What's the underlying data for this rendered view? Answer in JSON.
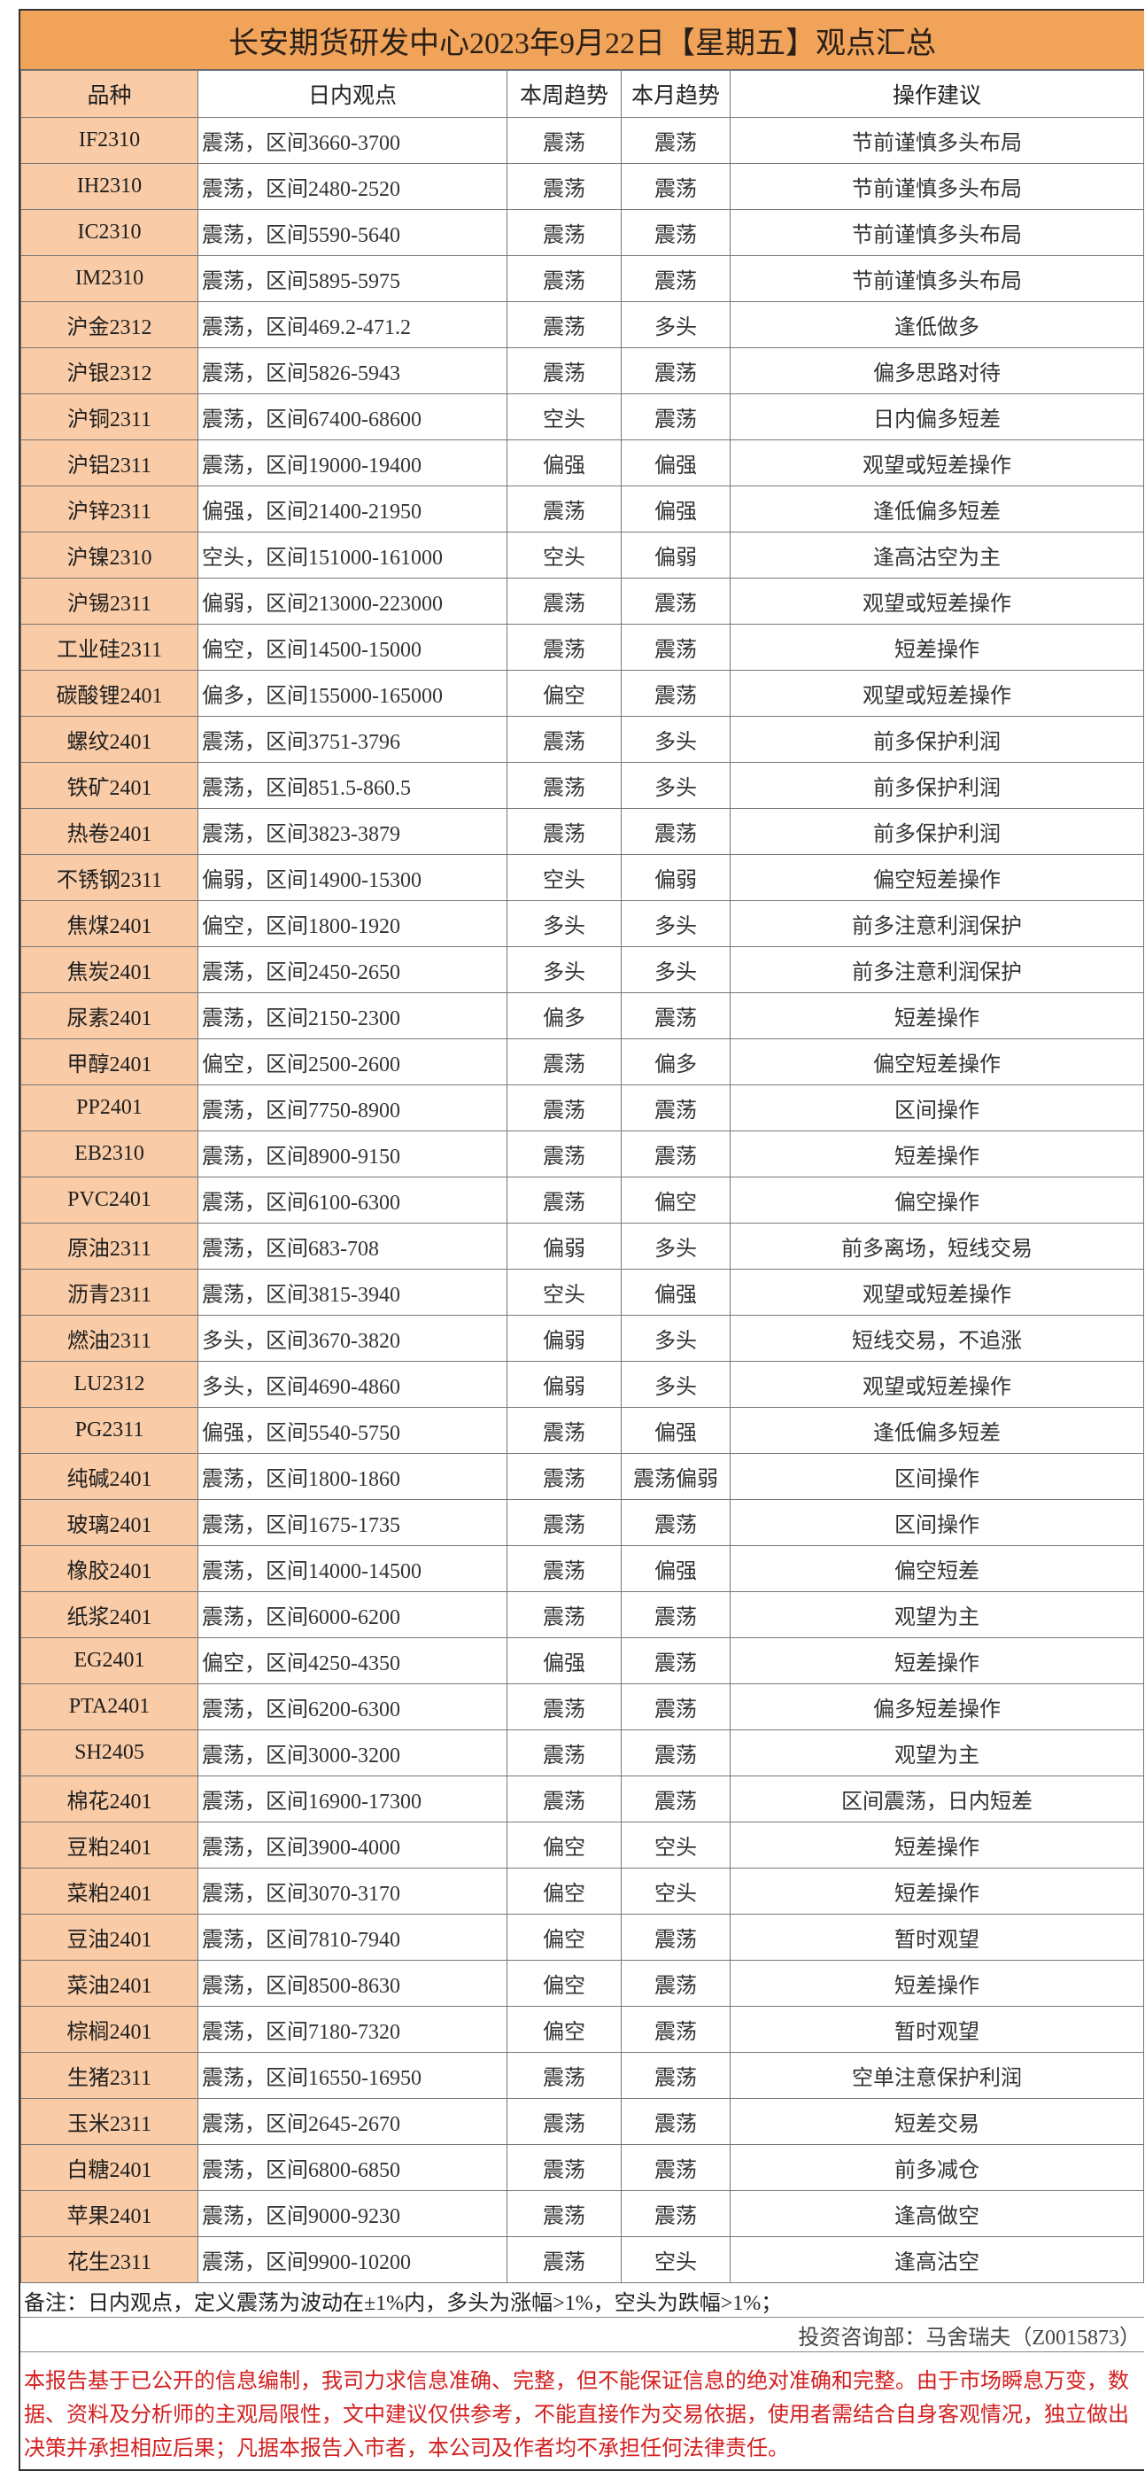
{
  "title": "长安期货研发中心2023年9月22日【星期五】观点汇总",
  "colors": {
    "title_bg": "#F1A35A",
    "variety_col_bg": "#F9CBA6",
    "disclaimer_text": "#D42020"
  },
  "headers": [
    "品种",
    "日内观点",
    "本周趋势",
    "本月趋势",
    "操作建议"
  ],
  "rows": [
    [
      "IF2310",
      "震荡，区间3660-3700",
      "震荡",
      "震荡",
      "节前谨慎多头布局"
    ],
    [
      "IH2310",
      "震荡，区间2480-2520",
      "震荡",
      "震荡",
      "节前谨慎多头布局"
    ],
    [
      "IC2310",
      "震荡，区间5590-5640",
      "震荡",
      "震荡",
      "节前谨慎多头布局"
    ],
    [
      "IM2310",
      "震荡，区间5895-5975",
      "震荡",
      "震荡",
      "节前谨慎多头布局"
    ],
    [
      "沪金2312",
      "震荡，区间469.2-471.2",
      "震荡",
      "多头",
      "逢低做多"
    ],
    [
      "沪银2312",
      "震荡，区间5826-5943",
      "震荡",
      "震荡",
      "偏多思路对待"
    ],
    [
      "沪铜2311",
      "震荡，区间67400-68600",
      "空头",
      "震荡",
      "日内偏多短差"
    ],
    [
      "沪铝2311",
      "震荡，区间19000-19400",
      "偏强",
      "偏强",
      "观望或短差操作"
    ],
    [
      "沪锌2311",
      "偏强，区间21400-21950",
      "震荡",
      "偏强",
      "逢低偏多短差"
    ],
    [
      "沪镍2310",
      "空头，区间151000-161000",
      "空头",
      "偏弱",
      "逢高沽空为主"
    ],
    [
      "沪锡2311",
      "偏弱，区间213000-223000",
      "震荡",
      "震荡",
      "观望或短差操作"
    ],
    [
      "工业硅2311",
      "偏空，区间14500-15000",
      "震荡",
      "震荡",
      "短差操作"
    ],
    [
      "碳酸锂2401",
      "偏多，区间155000-165000",
      "偏空",
      "震荡",
      "观望或短差操作"
    ],
    [
      "螺纹2401",
      "震荡，区间3751-3796",
      "震荡",
      "多头",
      "前多保护利润"
    ],
    [
      "铁矿2401",
      "震荡，区间851.5-860.5",
      "震荡",
      "多头",
      "前多保护利润"
    ],
    [
      "热卷2401",
      "震荡，区间3823-3879",
      "震荡",
      "震荡",
      "前多保护利润"
    ],
    [
      "不锈钢2311",
      "偏弱，区间14900-15300",
      "空头",
      "偏弱",
      "偏空短差操作"
    ],
    [
      "焦煤2401",
      "偏空，区间1800-1920",
      "多头",
      "多头",
      "前多注意利润保护"
    ],
    [
      "焦炭2401",
      "震荡，区间2450-2650",
      "多头",
      "多头",
      "前多注意利润保护"
    ],
    [
      "尿素2401",
      "震荡，区间2150-2300",
      "偏多",
      "震荡",
      "短差操作"
    ],
    [
      "甲醇2401",
      "偏空，区间2500-2600",
      "震荡",
      "偏多",
      "偏空短差操作"
    ],
    [
      "PP2401",
      "震荡，区间7750-8900",
      "震荡",
      "震荡",
      "区间操作"
    ],
    [
      "EB2310",
      "震荡，区间8900-9150",
      "震荡",
      "震荡",
      "短差操作"
    ],
    [
      "PVC2401",
      "震荡，区间6100-6300",
      "震荡",
      "偏空",
      "偏空操作"
    ],
    [
      "原油2311",
      "震荡，区间683-708",
      "偏弱",
      "多头",
      "前多离场，短线交易"
    ],
    [
      "沥青2311",
      "震荡，区间3815-3940",
      "空头",
      "偏强",
      "观望或短差操作"
    ],
    [
      "燃油2311",
      "多头，区间3670-3820",
      "偏弱",
      "多头",
      "短线交易，不追涨"
    ],
    [
      "LU2312",
      "多头，区间4690-4860",
      "偏弱",
      "多头",
      "观望或短差操作"
    ],
    [
      "PG2311",
      "偏强，区间5540-5750",
      "震荡",
      "偏强",
      "逢低偏多短差"
    ],
    [
      "纯碱2401",
      "震荡，区间1800-1860",
      "震荡",
      "震荡偏弱",
      "区间操作"
    ],
    [
      "玻璃2401",
      "震荡，区间1675-1735",
      "震荡",
      "震荡",
      "区间操作"
    ],
    [
      "橡胶2401",
      "震荡，区间14000-14500",
      "震荡",
      "偏强",
      "偏空短差"
    ],
    [
      "纸浆2401",
      "震荡，区间6000-6200",
      "震荡",
      "震荡",
      "观望为主"
    ],
    [
      "EG2401",
      "偏空，区间4250-4350",
      "偏强",
      "震荡",
      "短差操作"
    ],
    [
      "PTA2401",
      "震荡，区间6200-6300",
      "震荡",
      "震荡",
      "偏多短差操作"
    ],
    [
      "SH2405",
      "震荡，区间3000-3200",
      "震荡",
      "震荡",
      "观望为主"
    ],
    [
      "棉花2401",
      "震荡，区间16900-17300",
      "震荡",
      "震荡",
      "区间震荡，日内短差"
    ],
    [
      "豆粕2401",
      "震荡，区间3900-4000",
      "偏空",
      "空头",
      "短差操作"
    ],
    [
      "菜粕2401",
      "震荡，区间3070-3170",
      "偏空",
      "空头",
      "短差操作"
    ],
    [
      "豆油2401",
      "震荡，区间7810-7940",
      "偏空",
      "震荡",
      "暂时观望"
    ],
    [
      "菜油2401",
      "震荡，区间8500-8630",
      "偏空",
      "震荡",
      "短差操作"
    ],
    [
      "棕榈2401",
      "震荡，区间7180-7320",
      "偏空",
      "震荡",
      "暂时观望"
    ],
    [
      "生猪2311",
      "震荡，区间16550-16950",
      "震荡",
      "震荡",
      "空单注意保护利润"
    ],
    [
      "玉米2311",
      "震荡，区间2645-2670",
      "震荡",
      "震荡",
      "短差交易"
    ],
    [
      "白糖2401",
      "震荡，区间6800-6850",
      "震荡",
      "震荡",
      "前多减仓"
    ],
    [
      "苹果2401",
      "震荡，区间9000-9230",
      "震荡",
      "震荡",
      "逢高做空"
    ],
    [
      "花生2311",
      "震荡，区间9900-10200",
      "震荡",
      "空头",
      "逢高沽空"
    ]
  ],
  "note": "备注：日内观点，定义震荡为波动在±1%内，多头为涨幅>1%，空头为跌幅>1%；",
  "consultant": "投资咨询部：马舍瑞夫（Z0015873）",
  "disclaimer": "本报告基于已公开的信息编制，我司力求信息准确、完整，但不能保证信息的绝对准确和完整。由于市场瞬息万变，数据、资料及分析师的主观局限性，文中建议仅供参考，不能直接作为交易依据，使用者需结合自身客观情况，独立做出决策并承担相应后果；凡据本报告入市者，本公司及作者均不承担任何法律责任。"
}
